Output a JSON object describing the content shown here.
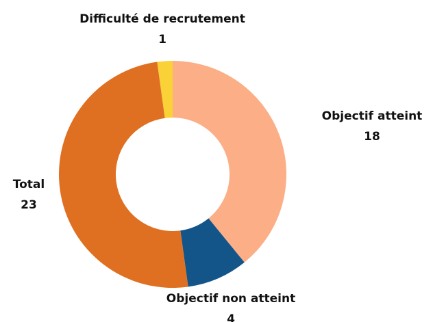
{
  "chart_data": {
    "type": "donut",
    "categories": [
      "Objectif atteint",
      "Objectif non atteint",
      "Total",
      "Difficulté de recrutement"
    ],
    "values": [
      18,
      4,
      23,
      1
    ],
    "colors": [
      "#fcae86",
      "#135589",
      "#e07021",
      "#fad136"
    ]
  }
}
